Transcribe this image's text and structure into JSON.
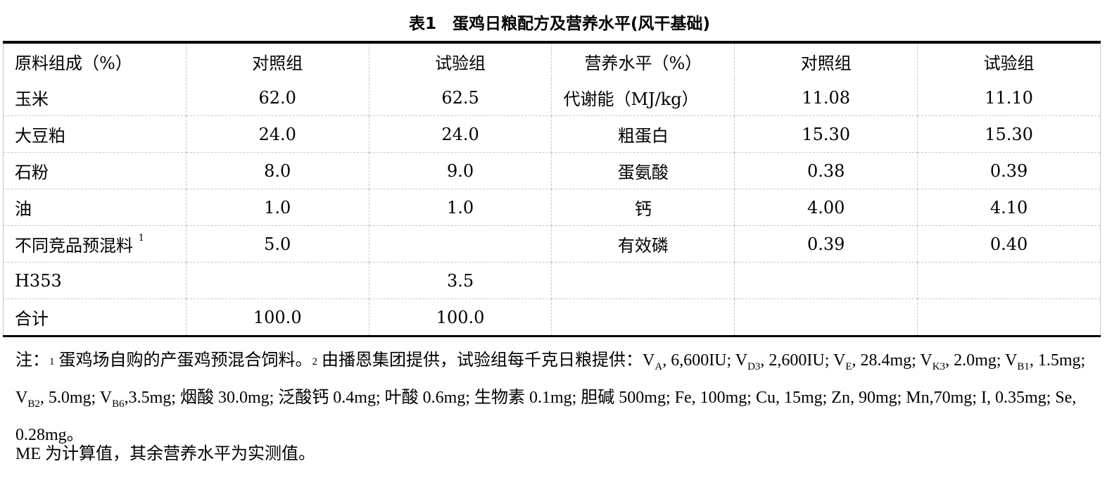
{
  "title": "表1　蛋鸡日粮配方及营养水平(风干基础)",
  "headers": [
    "原料组成（%）",
    "对照组",
    "试验组",
    "营养水平（%）",
    "对照组",
    "试验组"
  ],
  "rows": [
    [
      "玉米",
      "62.0",
      "62.5",
      "代谢能（MJ/kg）",
      "11.08",
      "11.10"
    ],
    [
      "大豆粕",
      "24.0",
      "24.0",
      "粗蛋白",
      "15.30",
      "15.30"
    ],
    [
      "石粉",
      "8.0",
      "9.0",
      "蛋氨酸",
      "0.38",
      "0.39"
    ],
    [
      "油",
      "1.0",
      "1.0",
      "钙",
      "4.00",
      "4.10"
    ],
    [
      "不同竞品预混料",
      "5.0",
      "",
      "有效磷",
      "0.39",
      "0.40"
    ],
    [
      "H353",
      "",
      "3.5",
      "",
      "",
      ""
    ],
    [
      "合计",
      "100.0",
      "100.0",
      "",
      "",
      ""
    ]
  ],
  "row5_sup": "1",
  "notes": {
    "p1": "注：",
    "s1": "1",
    "p2": " 蛋鸡场自购的产蛋鸡预混合饲料。",
    "s2": "2",
    "p3": " 由播恩集团提供，试验组每千克日粮提供：V",
    "a": "A",
    "p4": ", 6,600IU; V",
    "d3": "D3",
    "p5": ", 2,600IU; V",
    "e": "E",
    "p6": ", 28.4mg; V",
    "k3": "K3",
    "p7": ", 2.0mg; V",
    "b1": "B1",
    "p8": ", 1.5mg; V",
    "b2": "B2",
    "p9": ", 5.0mg; V",
    "b6": "B6",
    "p10": ",3.5mg; 烟酸 30.0mg; 泛酸钙 0.4mg; 叶酸 0.6mg; 生物素 0.1mg; 胆碱 500mg; Fe, 100mg; Cu, 15mg; Zn, 90mg; Mn,70mg; I, 0.35mg; Se, 0.28mg。",
    "line2": "ME 为计算值，其余营养水平为实测值。"
  }
}
